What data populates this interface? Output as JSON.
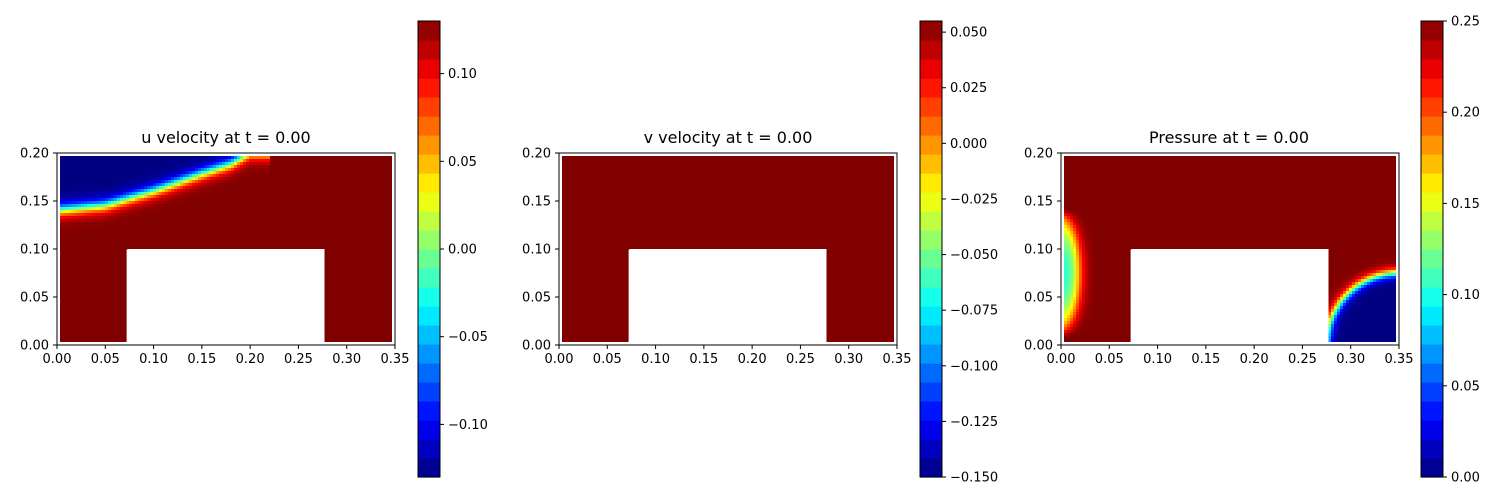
{
  "chart_data": [
    {
      "type": "heatmap",
      "title": "u velocity at t = 0.00",
      "xlim": [
        0.0,
        0.35
      ],
      "ylim": [
        0.0,
        0.2
      ],
      "x_ticks": [
        "0.00",
        "0.05",
        "0.10",
        "0.15",
        "0.20",
        "0.25",
        "0.30",
        "0.35"
      ],
      "y_ticks": [
        "0.00",
        "0.05",
        "0.10",
        "0.15",
        "0.20"
      ],
      "colormap": "jet",
      "colorbar": {
        "range": [
          -0.13,
          0.13
        ],
        "ticks": [
          {
            "value": 0.1,
            "label": "0.10"
          },
          {
            "value": 0.05,
            "label": "0.05"
          },
          {
            "value": 0.0,
            "label": "0.00"
          },
          {
            "value": -0.05,
            "label": "−0.05"
          },
          {
            "value": -0.1,
            "label": "−0.10"
          }
        ]
      },
      "domain": {
        "fluid_region": "U-shaped channel",
        "obstacle_x": [
          0.073,
          0.277
        ],
        "obstacle_y": [
          0.0,
          0.1
        ]
      },
      "field": {
        "background_value": 0.13,
        "front": {
          "points": [
            [
              0.0,
              0.14
            ],
            [
              0.05,
              0.145
            ],
            [
              0.1,
              0.16
            ],
            [
              0.15,
              0.178
            ],
            [
              0.18,
              0.188
            ],
            [
              0.2,
              0.2
            ]
          ],
          "low_side": "above",
          "low_value": -0.13,
          "width": 0.004
        }
      }
    },
    {
      "type": "heatmap",
      "title": "v velocity at t = 0.00",
      "xlim": [
        0.0,
        0.35
      ],
      "ylim": [
        0.0,
        0.2
      ],
      "x_ticks": [
        "0.00",
        "0.05",
        "0.10",
        "0.15",
        "0.20",
        "0.25",
        "0.30",
        "0.35"
      ],
      "y_ticks": [
        "0.00",
        "0.05",
        "0.10",
        "0.15",
        "0.20"
      ],
      "colormap": "jet",
      "colorbar": {
        "range": [
          -0.15,
          0.055
        ],
        "ticks": [
          {
            "value": 0.05,
            "label": "0.050"
          },
          {
            "value": 0.025,
            "label": "0.025"
          },
          {
            "value": 0.0,
            "label": "0.000"
          },
          {
            "value": -0.025,
            "label": "−0.025"
          },
          {
            "value": -0.05,
            "label": "−0.050"
          },
          {
            "value": -0.075,
            "label": "−0.075"
          },
          {
            "value": -0.1,
            "label": "−0.100"
          },
          {
            "value": -0.125,
            "label": "−0.125"
          },
          {
            "value": -0.15,
            "label": "−0.150"
          }
        ]
      },
      "domain": {
        "fluid_region": "U-shaped channel",
        "obstacle_x": [
          0.073,
          0.277
        ],
        "obstacle_y": [
          0.0,
          0.1
        ]
      },
      "field": {
        "background_value": 0.055
      }
    },
    {
      "type": "heatmap",
      "title": "Pressure at t = 0.00",
      "xlim": [
        0.0,
        0.35
      ],
      "ylim": [
        0.0,
        0.2
      ],
      "x_ticks": [
        "0.00",
        "0.05",
        "0.10",
        "0.15",
        "0.20",
        "0.25",
        "0.30",
        "0.35"
      ],
      "y_ticks": [
        "0.00",
        "0.05",
        "0.10",
        "0.15",
        "0.20"
      ],
      "colormap": "jet",
      "colorbar": {
        "range": [
          0.0,
          0.25
        ],
        "ticks": [
          {
            "value": 0.25,
            "label": "0.25"
          },
          {
            "value": 0.2,
            "label": "0.20"
          },
          {
            "value": 0.15,
            "label": "0.15"
          },
          {
            "value": 0.1,
            "label": "0.10"
          },
          {
            "value": 0.05,
            "label": "0.05"
          },
          {
            "value": 0.0,
            "label": "0.00"
          }
        ]
      },
      "domain": {
        "fluid_region": "U-shaped channel",
        "obstacle_x": [
          0.073,
          0.277
        ],
        "obstacle_y": [
          0.0,
          0.1
        ]
      },
      "field": {
        "background_value": 0.25,
        "left_wall_dip": {
          "center_y": 0.075,
          "half_height": 0.065,
          "depth": 0.018,
          "min_value": 0.1
        },
        "corner_low": {
          "center": [
            0.35,
            0.0
          ],
          "radius": 0.075,
          "low_value": 0.0,
          "width": 0.012
        }
      }
    }
  ]
}
